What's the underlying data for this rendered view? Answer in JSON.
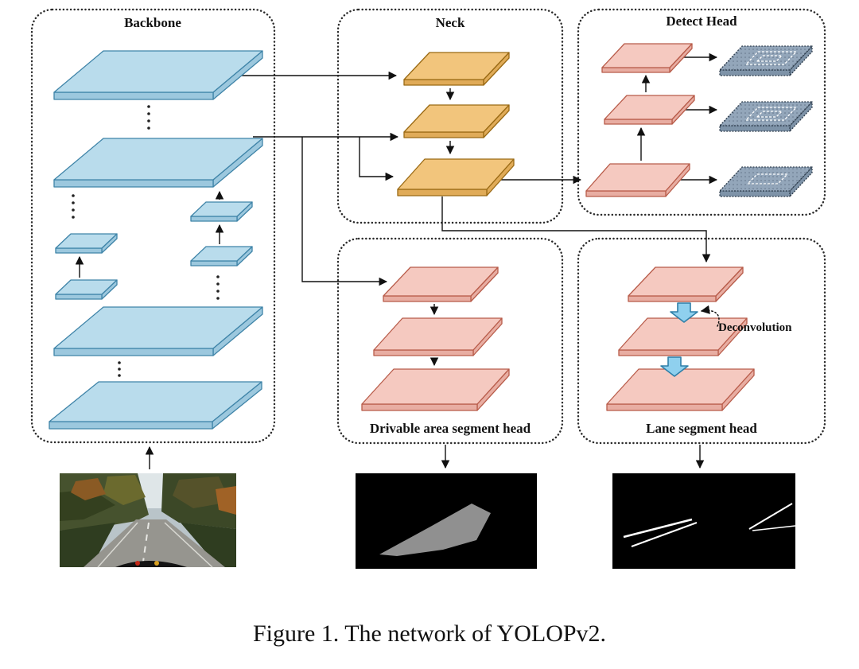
{
  "caption": "Figure 1. The network of YOLOPv2.",
  "modules": {
    "backbone": {
      "title": "Backbone"
    },
    "neck": {
      "title": "Neck"
    },
    "detect_head": {
      "title": "Detect Head"
    },
    "drivable_head": {
      "title": "Drivable area segment head"
    },
    "lane_head": {
      "title": "Lane segment head"
    }
  },
  "annotations": {
    "deconvolution": "Deconvolution"
  },
  "colors": {
    "backbone_fill": "#b9dcec",
    "backbone_side": "#9cc8de",
    "backbone_stroke": "#3f84a8",
    "neck_fill": "#f2c57c",
    "neck_side": "#e0ab58",
    "neck_stroke": "#9a6a14",
    "head_fill": "#f5c9c0",
    "head_side": "#e8ada2",
    "head_stroke": "#b85c4a",
    "detect_out_fill": "#93a6ba",
    "detect_out_side": "#7e93a8",
    "detect_out_stroke": "#2f3e4e",
    "deconv_fill": "#8fd0ee",
    "deconv_stroke": "#2f7fa8",
    "line": "#111111"
  }
}
